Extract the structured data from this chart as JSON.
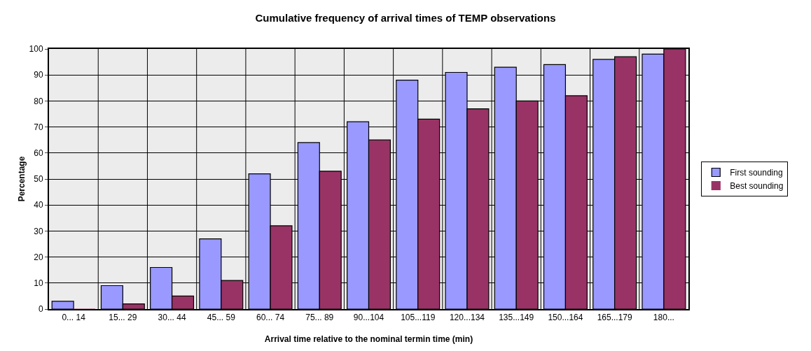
{
  "chart_data": {
    "type": "bar",
    "title": "Cumulative frequency of arrival times of TEMP observations",
    "xlabel": "Arrival time relative to the nominal termin time (min)",
    "ylabel": "Percentage",
    "categories": [
      "0... 14",
      "15... 29",
      "30... 44",
      "45... 59",
      "60... 74",
      "75... 89",
      "90...104",
      "105...119",
      "120...134",
      "135...149",
      "150...164",
      "165...179",
      "180..."
    ],
    "series": [
      {
        "name": "First sounding",
        "color": "#9999ff",
        "values": [
          3,
          9,
          16,
          27,
          52,
          64,
          72,
          88,
          91,
          93,
          94,
          96,
          98
        ]
      },
      {
        "name": "Best sounding",
        "color": "#993366",
        "values": [
          0,
          2,
          5,
          11,
          32,
          53,
          65,
          73,
          77,
          80,
          82,
          97,
          100
        ]
      }
    ],
    "ylim": [
      0,
      100
    ],
    "yticks": [
      0,
      10,
      20,
      30,
      40,
      50,
      60,
      70,
      80,
      90,
      100
    ],
    "grid": true,
    "legend": "right"
  }
}
